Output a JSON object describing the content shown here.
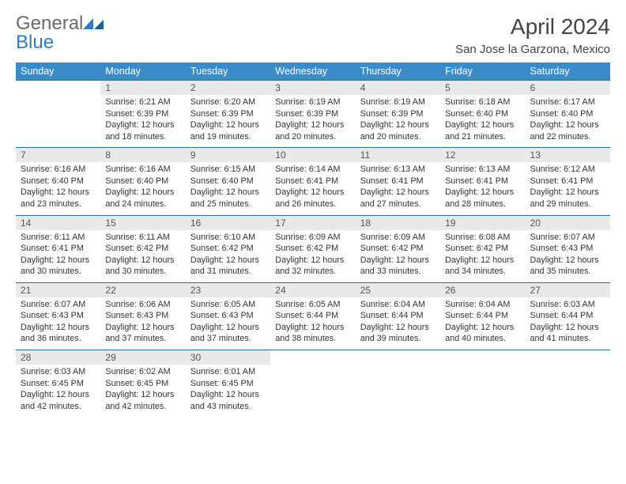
{
  "brand": {
    "part1": "General",
    "part2": "Blue",
    "color_general": "#6b6b6b",
    "color_blue": "#2f7cc0"
  },
  "title": "April 2024",
  "location": "San Jose la Garzona, Mexico",
  "weekday_header_bg": "#3b8bc8",
  "daynum_bg": "#e9e9e9",
  "row_border_color": "#2b6ea6",
  "weekdays": [
    "Sunday",
    "Monday",
    "Tuesday",
    "Wednesday",
    "Thursday",
    "Friday",
    "Saturday"
  ],
  "weeks": [
    [
      null,
      {
        "n": "1",
        "sr": "Sunrise: 6:21 AM",
        "ss": "Sunset: 6:39 PM",
        "d1": "Daylight: 12 hours",
        "d2": "and 18 minutes."
      },
      {
        "n": "2",
        "sr": "Sunrise: 6:20 AM",
        "ss": "Sunset: 6:39 PM",
        "d1": "Daylight: 12 hours",
        "d2": "and 19 minutes."
      },
      {
        "n": "3",
        "sr": "Sunrise: 6:19 AM",
        "ss": "Sunset: 6:39 PM",
        "d1": "Daylight: 12 hours",
        "d2": "and 20 minutes."
      },
      {
        "n": "4",
        "sr": "Sunrise: 6:19 AM",
        "ss": "Sunset: 6:39 PM",
        "d1": "Daylight: 12 hours",
        "d2": "and 20 minutes."
      },
      {
        "n": "5",
        "sr": "Sunrise: 6:18 AM",
        "ss": "Sunset: 6:40 PM",
        "d1": "Daylight: 12 hours",
        "d2": "and 21 minutes."
      },
      {
        "n": "6",
        "sr": "Sunrise: 6:17 AM",
        "ss": "Sunset: 6:40 PM",
        "d1": "Daylight: 12 hours",
        "d2": "and 22 minutes."
      }
    ],
    [
      {
        "n": "7",
        "sr": "Sunrise: 6:16 AM",
        "ss": "Sunset: 6:40 PM",
        "d1": "Daylight: 12 hours",
        "d2": "and 23 minutes."
      },
      {
        "n": "8",
        "sr": "Sunrise: 6:16 AM",
        "ss": "Sunset: 6:40 PM",
        "d1": "Daylight: 12 hours",
        "d2": "and 24 minutes."
      },
      {
        "n": "9",
        "sr": "Sunrise: 6:15 AM",
        "ss": "Sunset: 6:40 PM",
        "d1": "Daylight: 12 hours",
        "d2": "and 25 minutes."
      },
      {
        "n": "10",
        "sr": "Sunrise: 6:14 AM",
        "ss": "Sunset: 6:41 PM",
        "d1": "Daylight: 12 hours",
        "d2": "and 26 minutes."
      },
      {
        "n": "11",
        "sr": "Sunrise: 6:13 AM",
        "ss": "Sunset: 6:41 PM",
        "d1": "Daylight: 12 hours",
        "d2": "and 27 minutes."
      },
      {
        "n": "12",
        "sr": "Sunrise: 6:13 AM",
        "ss": "Sunset: 6:41 PM",
        "d1": "Daylight: 12 hours",
        "d2": "and 28 minutes."
      },
      {
        "n": "13",
        "sr": "Sunrise: 6:12 AM",
        "ss": "Sunset: 6:41 PM",
        "d1": "Daylight: 12 hours",
        "d2": "and 29 minutes."
      }
    ],
    [
      {
        "n": "14",
        "sr": "Sunrise: 6:11 AM",
        "ss": "Sunset: 6:41 PM",
        "d1": "Daylight: 12 hours",
        "d2": "and 30 minutes."
      },
      {
        "n": "15",
        "sr": "Sunrise: 6:11 AM",
        "ss": "Sunset: 6:42 PM",
        "d1": "Daylight: 12 hours",
        "d2": "and 30 minutes."
      },
      {
        "n": "16",
        "sr": "Sunrise: 6:10 AM",
        "ss": "Sunset: 6:42 PM",
        "d1": "Daylight: 12 hours",
        "d2": "and 31 minutes."
      },
      {
        "n": "17",
        "sr": "Sunrise: 6:09 AM",
        "ss": "Sunset: 6:42 PM",
        "d1": "Daylight: 12 hours",
        "d2": "and 32 minutes."
      },
      {
        "n": "18",
        "sr": "Sunrise: 6:09 AM",
        "ss": "Sunset: 6:42 PM",
        "d1": "Daylight: 12 hours",
        "d2": "and 33 minutes."
      },
      {
        "n": "19",
        "sr": "Sunrise: 6:08 AM",
        "ss": "Sunset: 6:42 PM",
        "d1": "Daylight: 12 hours",
        "d2": "and 34 minutes."
      },
      {
        "n": "20",
        "sr": "Sunrise: 6:07 AM",
        "ss": "Sunset: 6:43 PM",
        "d1": "Daylight: 12 hours",
        "d2": "and 35 minutes."
      }
    ],
    [
      {
        "n": "21",
        "sr": "Sunrise: 6:07 AM",
        "ss": "Sunset: 6:43 PM",
        "d1": "Daylight: 12 hours",
        "d2": "and 36 minutes."
      },
      {
        "n": "22",
        "sr": "Sunrise: 6:06 AM",
        "ss": "Sunset: 6:43 PM",
        "d1": "Daylight: 12 hours",
        "d2": "and 37 minutes."
      },
      {
        "n": "23",
        "sr": "Sunrise: 6:05 AM",
        "ss": "Sunset: 6:43 PM",
        "d1": "Daylight: 12 hours",
        "d2": "and 37 minutes."
      },
      {
        "n": "24",
        "sr": "Sunrise: 6:05 AM",
        "ss": "Sunset: 6:44 PM",
        "d1": "Daylight: 12 hours",
        "d2": "and 38 minutes."
      },
      {
        "n": "25",
        "sr": "Sunrise: 6:04 AM",
        "ss": "Sunset: 6:44 PM",
        "d1": "Daylight: 12 hours",
        "d2": "and 39 minutes."
      },
      {
        "n": "26",
        "sr": "Sunrise: 6:04 AM",
        "ss": "Sunset: 6:44 PM",
        "d1": "Daylight: 12 hours",
        "d2": "and 40 minutes."
      },
      {
        "n": "27",
        "sr": "Sunrise: 6:03 AM",
        "ss": "Sunset: 6:44 PM",
        "d1": "Daylight: 12 hours",
        "d2": "and 41 minutes."
      }
    ],
    [
      {
        "n": "28",
        "sr": "Sunrise: 6:03 AM",
        "ss": "Sunset: 6:45 PM",
        "d1": "Daylight: 12 hours",
        "d2": "and 42 minutes."
      },
      {
        "n": "29",
        "sr": "Sunrise: 6:02 AM",
        "ss": "Sunset: 6:45 PM",
        "d1": "Daylight: 12 hours",
        "d2": "and 42 minutes."
      },
      {
        "n": "30",
        "sr": "Sunrise: 6:01 AM",
        "ss": "Sunset: 6:45 PM",
        "d1": "Daylight: 12 hours",
        "d2": "and 43 minutes."
      },
      null,
      null,
      null,
      null
    ]
  ]
}
